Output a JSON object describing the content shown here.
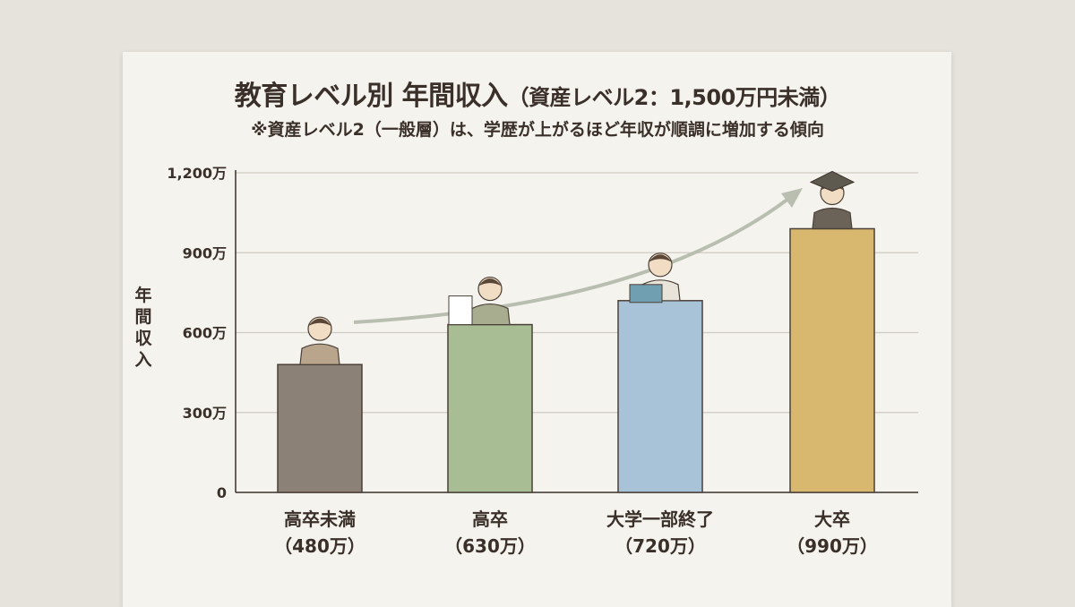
{
  "chart_data": {
    "type": "bar",
    "title": "教育レベル別 年間収入",
    "title_note": "（資産レベル2：1,500万円未満）",
    "subtitle": "※資産レベル2（一般層）は、学歴が上がるほど年収が順調に増加する傾向",
    "ylabel": "年間収入",
    "xlabel": "",
    "ylim": [
      0,
      1200
    ],
    "yticks": [
      0,
      300,
      600,
      900,
      1200
    ],
    "ytick_labels": [
      "0",
      "300万",
      "600万",
      "900万",
      "1,200万"
    ],
    "grid": true,
    "categories": [
      "高卒未満",
      "高卒",
      "大学一部終了",
      "大卒"
    ],
    "value_labels": [
      "（480万）",
      "（630万）",
      "（720万）",
      "（990万）"
    ],
    "values": [
      480,
      630,
      720,
      990
    ],
    "colors": [
      "#8b8176",
      "#a9bd94",
      "#a8c2d8",
      "#d8b86f"
    ],
    "trend_arrow": true
  }
}
